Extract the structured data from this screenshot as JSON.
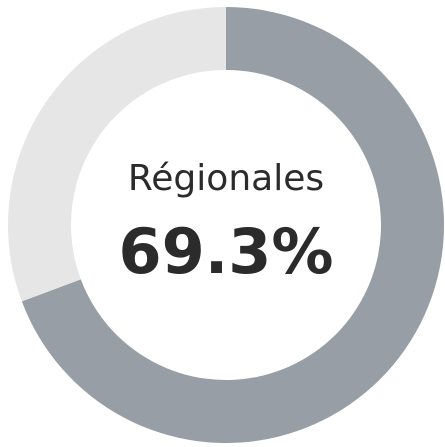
{
  "chart_data": {
    "type": "donut",
    "categories": [
      "Régionales",
      null
    ],
    "values": [
      69.3,
      30.7
    ],
    "value_labels": [
      "69.3%",
      null
    ],
    "colors": [
      "#989ea5",
      "#e6e6e6"
    ]
  }
}
